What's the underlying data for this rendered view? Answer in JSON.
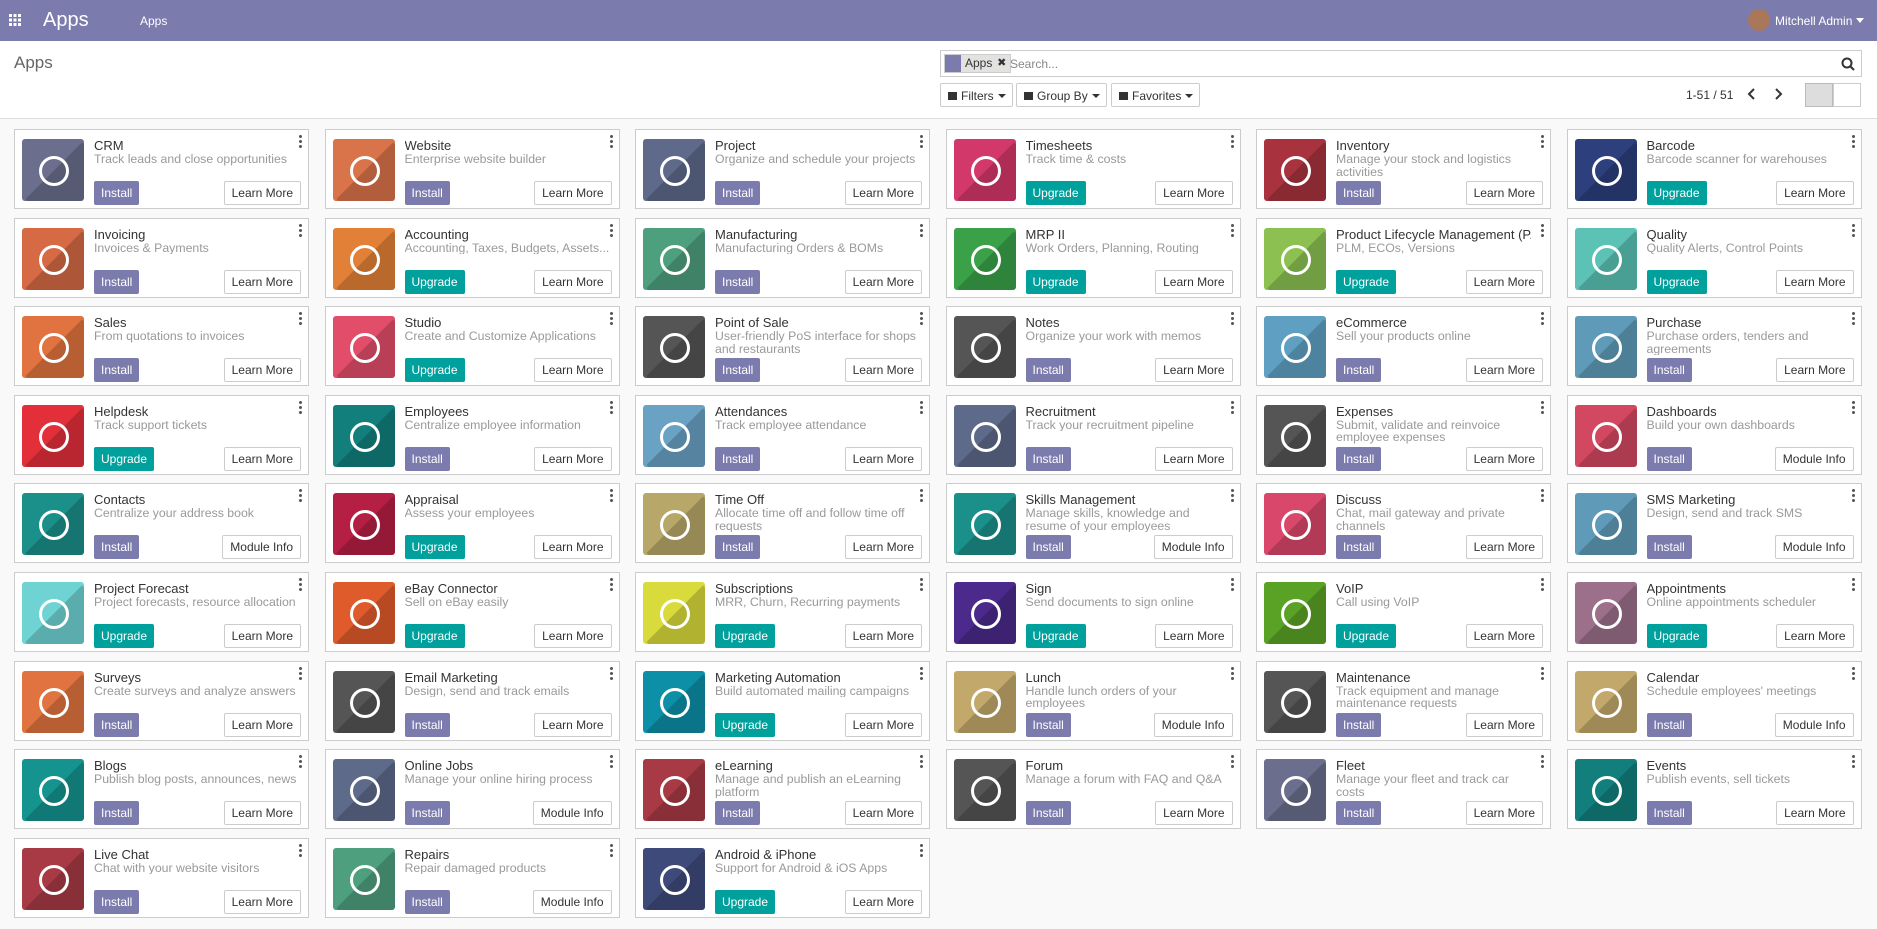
{
  "navbar": {
    "brand": "Apps",
    "menu": "Apps",
    "user": "Mitchell Admin"
  },
  "control_panel": {
    "breadcrumb": "Apps",
    "facet": "Apps",
    "search_placeholder": "Search...",
    "filters": "Filters",
    "group_by": "Group By",
    "favorites": "Favorites",
    "pager": "1-51 / 51"
  },
  "apps": [
    {
      "name": "CRM",
      "desc": "Track leads and close opportunities",
      "action": "Install",
      "info": "Learn More",
      "color": "#6b6e8d"
    },
    {
      "name": "Website",
      "desc": "Enterprise website builder",
      "action": "Install",
      "info": "Learn More",
      "color": "#d9734a"
    },
    {
      "name": "Project",
      "desc": "Organize and schedule your projects",
      "action": "Install",
      "info": "Learn More",
      "color": "#5f6a8a"
    },
    {
      "name": "Timesheets",
      "desc": "Track time & costs",
      "action": "Upgrade",
      "info": "Learn More",
      "color": "#d3386a"
    },
    {
      "name": "Inventory",
      "desc": "Manage your stock and logistics activities",
      "action": "Install",
      "info": "Learn More",
      "color": "#a8333e"
    },
    {
      "name": "Barcode",
      "desc": "Barcode scanner for warehouses",
      "action": "Upgrade",
      "info": "Learn More",
      "color": "#2d3f7c"
    },
    {
      "name": "Invoicing",
      "desc": "Invoices & Payments",
      "action": "Install",
      "info": "Learn More",
      "color": "#d56a45"
    },
    {
      "name": "Accounting",
      "desc": "Accounting, Taxes, Budgets, Assets...",
      "action": "Upgrade",
      "info": "Learn More",
      "color": "#e38038"
    },
    {
      "name": "Manufacturing",
      "desc": "Manufacturing Orders & BOMs",
      "action": "Install",
      "info": "Learn More",
      "color": "#4d9f7e"
    },
    {
      "name": "MRP II",
      "desc": "Work Orders, Planning, Routing",
      "action": "Upgrade",
      "info": "Learn More",
      "color": "#3aa149"
    },
    {
      "name": "Product Lifecycle Management (P...",
      "desc": "PLM, ECOs, Versions",
      "action": "Upgrade",
      "info": "Learn More",
      "color": "#8cc152"
    },
    {
      "name": "Quality",
      "desc": "Quality Alerts, Control Points",
      "action": "Upgrade",
      "info": "Learn More",
      "color": "#5bc2b5"
    },
    {
      "name": "Sales",
      "desc": "From quotations to invoices",
      "action": "Install",
      "info": "Learn More",
      "color": "#e0733f"
    },
    {
      "name": "Studio",
      "desc": "Create and Customize Applications",
      "action": "Upgrade",
      "info": "Learn More",
      "color": "#e24d6a"
    },
    {
      "name": "Point of Sale",
      "desc": "User-friendly PoS interface for shops and restaurants",
      "action": "Install",
      "info": "Learn More",
      "color": "#555555"
    },
    {
      "name": "Notes",
      "desc": "Organize your work with memos",
      "action": "Install",
      "info": "Learn More",
      "color": "#555555"
    },
    {
      "name": "eCommerce",
      "desc": "Sell your products online",
      "action": "Install",
      "info": "Learn More",
      "color": "#5fa0c2"
    },
    {
      "name": "Purchase",
      "desc": "Purchase orders, tenders and agreements",
      "action": "Install",
      "info": "Learn More",
      "color": "#5f9bb8"
    },
    {
      "name": "Helpdesk",
      "desc": "Track support tickets",
      "action": "Upgrade",
      "info": "Learn More",
      "color": "#e22f3a"
    },
    {
      "name": "Employees",
      "desc": "Centralize employee information",
      "action": "Install",
      "info": "Learn More",
      "color": "#127f7d"
    },
    {
      "name": "Attendances",
      "desc": "Track employee attendance",
      "action": "Install",
      "info": "Learn More",
      "color": "#6aa2c4"
    },
    {
      "name": "Recruitment",
      "desc": "Track your recruitment pipeline",
      "action": "Install",
      "info": "Learn More",
      "color": "#5d6a8a"
    },
    {
      "name": "Expenses",
      "desc": "Submit, validate and reinvoice employee expenses",
      "action": "Install",
      "info": "Learn More",
      "color": "#555555"
    },
    {
      "name": "Dashboards",
      "desc": "Build your own dashboards",
      "action": "Install",
      "info": "Module Info",
      "color": "#d34861"
    },
    {
      "name": "Contacts",
      "desc": "Centralize your address book",
      "action": "Install",
      "info": "Module Info",
      "color": "#1b8f8a"
    },
    {
      "name": "Appraisal",
      "desc": "Assess your employees",
      "action": "Upgrade",
      "info": "Learn More",
      "color": "#b51f44"
    },
    {
      "name": "Time Off",
      "desc": "Allocate time off and follow time off requests",
      "action": "Install",
      "info": "Learn More",
      "color": "#b7a86a"
    },
    {
      "name": "Skills Management",
      "desc": "Manage skills, knowledge and resume of your employees",
      "action": "Install",
      "info": "Module Info",
      "color": "#1b8f8a"
    },
    {
      "name": "Discuss",
      "desc": "Chat, mail gateway and private channels",
      "action": "Install",
      "info": "Learn More",
      "color": "#d9476a"
    },
    {
      "name": "SMS Marketing",
      "desc": "Design, send and track SMS",
      "action": "Install",
      "info": "Module Info",
      "color": "#5f9bb8"
    },
    {
      "name": "Project Forecast",
      "desc": "Project forecasts, resource allocation",
      "action": "Upgrade",
      "info": "Learn More",
      "color": "#6fd3d3"
    },
    {
      "name": "eBay Connector",
      "desc": "Sell on eBay easily",
      "action": "Upgrade",
      "info": "Learn More",
      "color": "#e05b2b"
    },
    {
      "name": "Subscriptions",
      "desc": "MRR, Churn, Recurring payments",
      "action": "Upgrade",
      "info": "Learn More",
      "color": "#d9da3c"
    },
    {
      "name": "Sign",
      "desc": "Send documents to sign online",
      "action": "Upgrade",
      "info": "Learn More",
      "color": "#4b2a8c"
    },
    {
      "name": "VoIP",
      "desc": "Call using VoIP",
      "action": "Upgrade",
      "info": "Learn More",
      "color": "#5aa226"
    },
    {
      "name": "Appointments",
      "desc": "Online appointments scheduler",
      "action": "Upgrade",
      "info": "Learn More",
      "color": "#9c6f8a"
    },
    {
      "name": "Surveys",
      "desc": "Create surveys and analyze answers",
      "action": "Install",
      "info": "Learn More",
      "color": "#e0733f"
    },
    {
      "name": "Email Marketing",
      "desc": "Design, send and track emails",
      "action": "Install",
      "info": "Learn More",
      "color": "#555555"
    },
    {
      "name": "Marketing Automation",
      "desc": "Build automated mailing campaigns",
      "action": "Upgrade",
      "info": "Learn More",
      "color": "#0d8fa7"
    },
    {
      "name": "Lunch",
      "desc": "Handle lunch orders of your employees",
      "action": "Install",
      "info": "Module Info",
      "color": "#c2a86a"
    },
    {
      "name": "Maintenance",
      "desc": "Track equipment and manage maintenance requests",
      "action": "Install",
      "info": "Learn More",
      "color": "#555555"
    },
    {
      "name": "Calendar",
      "desc": "Schedule employees' meetings",
      "action": "Install",
      "info": "Module Info",
      "color": "#c2a86a"
    },
    {
      "name": "Blogs",
      "desc": "Publish blog posts, announces, news",
      "action": "Install",
      "info": "Learn More",
      "color": "#14938f"
    },
    {
      "name": "Online Jobs",
      "desc": "Manage your online hiring process",
      "action": "Install",
      "info": "Module Info",
      "color": "#5d6a8a"
    },
    {
      "name": "eLearning",
      "desc": "Manage and publish an eLearning platform",
      "action": "Install",
      "info": "Learn More",
      "color": "#a83a45"
    },
    {
      "name": "Forum",
      "desc": "Manage a forum with FAQ and Q&A",
      "action": "Install",
      "info": "Learn More",
      "color": "#555555"
    },
    {
      "name": "Fleet",
      "desc": "Manage your fleet and track car costs",
      "action": "Install",
      "info": "Learn More",
      "color": "#6b6e8d"
    },
    {
      "name": "Events",
      "desc": "Publish events, sell tickets",
      "action": "Install",
      "info": "Learn More",
      "color": "#127f7d"
    },
    {
      "name": "Live Chat",
      "desc": "Chat with your website visitors",
      "action": "Install",
      "info": "Learn More",
      "color": "#a83a45"
    },
    {
      "name": "Repairs",
      "desc": "Repair damaged products",
      "action": "Install",
      "info": "Module Info",
      "color": "#4d9f7e"
    },
    {
      "name": "Android & iPhone",
      "desc": "Support for Android & iOS Apps",
      "action": "Upgrade",
      "info": "Learn More",
      "color": "#3e4a7a"
    }
  ]
}
